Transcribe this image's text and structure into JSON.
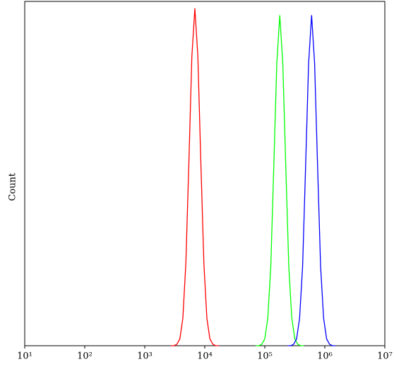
{
  "chart_data": {
    "type": "line",
    "ylabel": "Count",
    "xscale": "log",
    "xlim": [
      10,
      10000000
    ],
    "ylim": [
      0,
      100
    ],
    "xticks": [
      {
        "value": 10,
        "label": "10¹"
      },
      {
        "value": 100,
        "label": "10²"
      },
      {
        "value": 1000,
        "label": "10³"
      },
      {
        "value": 10000,
        "label": "10⁴"
      },
      {
        "value": 100000,
        "label": "10⁵"
      },
      {
        "value": 1000000,
        "label": "10⁶"
      },
      {
        "value": 10000000,
        "label": "10⁷"
      }
    ],
    "series": [
      {
        "color": "#ff0000",
        "x": [
          2723,
          3055,
          3428,
          3846,
          4315,
          4842,
          5433,
          6095,
          6839,
          7674,
          8610,
          9661,
          10839,
          12162,
          13646,
          15311,
          17179
        ],
        "values": [
          0,
          0,
          0.4,
          2,
          8,
          24,
          53,
          84,
          98,
          84,
          53,
          24,
          8,
          2,
          0.4,
          0,
          0
        ]
      },
      {
        "color": "#00ff00",
        "x": [
          70795,
          79433,
          89125,
          100000,
          112202,
          125893,
          141254,
          158489,
          177828,
          199526,
          223872,
          251189,
          281838,
          316228,
          354813,
          398107,
          446684
        ],
        "values": [
          0,
          0,
          0.4,
          2,
          8,
          23,
          52,
          82,
          96,
          82,
          52,
          23,
          8,
          2,
          0.4,
          0,
          0
        ]
      },
      {
        "color": "#0000ff",
        "x": [
          239883,
          269153,
          301995,
          338844,
          380189,
          426580,
          478630,
          537032,
          602560,
          676083,
          758578,
          851138,
          954993,
          1071519,
          1202264,
          1348963,
          1513561
        ],
        "values": [
          0,
          0,
          0.4,
          2,
          8,
          23,
          52,
          82,
          96,
          82,
          52,
          23,
          8,
          2,
          0.4,
          0,
          0
        ]
      }
    ]
  }
}
